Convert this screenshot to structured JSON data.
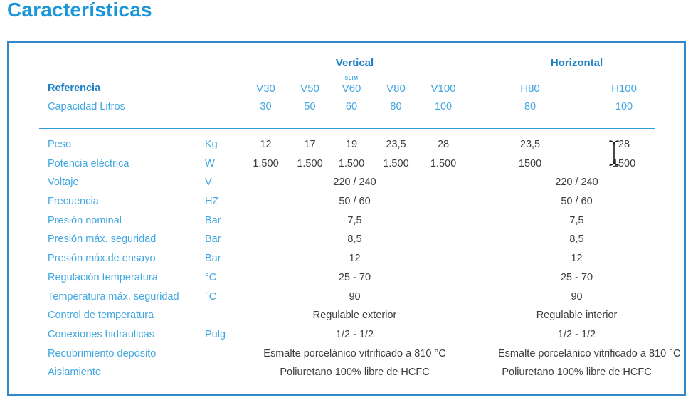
{
  "page_title": "Características",
  "colors": {
    "title_blue": "#1b96d8",
    "header_blue": "#1d80c5",
    "label_blue": "#41a7e0",
    "value_gray": "#3d3d3d",
    "card_border": "#3189cb",
    "divider": "#2b9cd8"
  },
  "table": {
    "groups": {
      "vertical": "Vertical",
      "horizontal": "Horizontal"
    },
    "header": {
      "referencia_label": "Referencia",
      "capacidad_label": "Capacidad Litros",
      "slim_label": "SLIM",
      "slim_model_index": 2,
      "models_vertical": [
        "V30",
        "V50",
        "V60",
        "V80",
        "V100"
      ],
      "models_horizontal": [
        "H80",
        "H100"
      ],
      "capacities_vertical": [
        "30",
        "50",
        "60",
        "80",
        "100"
      ],
      "capacities_horizontal": [
        "80",
        "100"
      ]
    },
    "rows": [
      {
        "label": "Peso",
        "unit": "Kg",
        "type": "cells",
        "vertical": [
          "12",
          "17",
          "19",
          "23,5",
          "28"
        ],
        "horizontal": [
          "23,5",
          "28"
        ]
      },
      {
        "label": "Potencia eléctrica",
        "unit": "W",
        "type": "cells",
        "vertical": [
          "1.500",
          "1.500",
          "1.500",
          "1.500",
          "1.500"
        ],
        "horizontal": [
          "1500",
          "1500"
        ]
      },
      {
        "label": "Voltaje",
        "unit": "V",
        "type": "span",
        "vertical": "220 / 240",
        "horizontal": "220 / 240"
      },
      {
        "label": "Frecuencia",
        "unit": "HZ",
        "type": "span",
        "vertical": "50 / 60",
        "horizontal": "50 / 60"
      },
      {
        "label": "Presión nominal",
        "unit": "Bar",
        "type": "span",
        "vertical": "7,5",
        "horizontal": "7,5"
      },
      {
        "label": "Presión máx. seguridad",
        "unit": "Bar",
        "type": "span",
        "vertical": "8,5",
        "horizontal": "8,5"
      },
      {
        "label": "Presión máx.de ensayo",
        "unit": "Bar",
        "type": "span",
        "vertical": "12",
        "horizontal": "12"
      },
      {
        "label": "Regulación temperatura",
        "unit": "°C",
        "type": "span",
        "vertical": "25 - 70",
        "horizontal": "25 - 70"
      },
      {
        "label": "Temperatura máx. seguridad",
        "unit": "°C",
        "type": "span",
        "vertical": "90",
        "horizontal": "90"
      },
      {
        "label": "Control de temperatura",
        "unit": "",
        "type": "span",
        "vertical": "Regulable exterior",
        "horizontal": "Regulable interior"
      },
      {
        "label": "Conexiones hidráulicas",
        "unit": "Pulg",
        "type": "span",
        "vertical": "1/2 - 1/2",
        "horizontal": "1/2 - 1/2"
      },
      {
        "label": "Recubrimiento depósito",
        "unit": "",
        "type": "span",
        "vertical": "Esmalte porcelánico vitrificado a 810 °C",
        "horizontal": "Esmalte porcelánico vitrificado a 810 °C"
      },
      {
        "label": "Aislamiento",
        "unit": "",
        "type": "span",
        "vertical": "Poliuretano 100% libre de HCFC",
        "horizontal": "Poliuretano 100% libre de HCFC"
      }
    ]
  }
}
